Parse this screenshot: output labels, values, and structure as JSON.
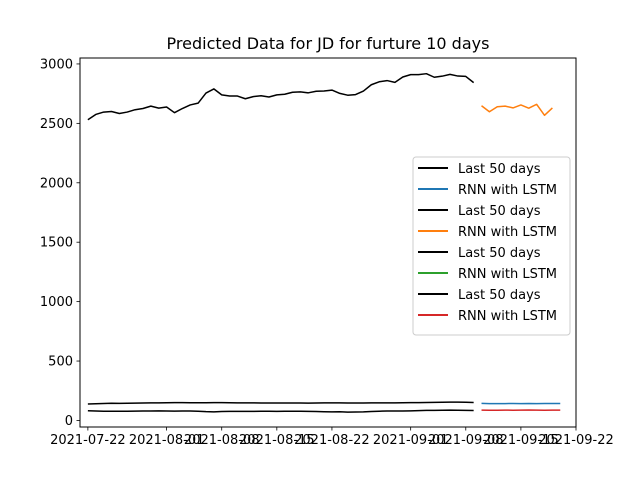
{
  "chart_data": {
    "type": "line",
    "title": "Predicted Data for JD for furture 10 days",
    "xlabel": "",
    "ylabel": "",
    "ylim": [
      -55,
      3050
    ],
    "xlim": [
      "2021-07-21",
      "2021-09-22"
    ],
    "grid": false,
    "legend_position": "center-right",
    "x_ticks": [
      "2021-07-22",
      "2021-08-01",
      "2021-08-08",
      "2021-08-15",
      "2021-08-22",
      "2021-09-01",
      "2021-09-08",
      "2021-09-15",
      "2021-09-22"
    ],
    "x_tick_positions": [
      "2021-07-22",
      "2021-08-01",
      "2021-08-08",
      "2021-08-15",
      "2021-08-22",
      "2021-09-01",
      "2021-09-08",
      "2021-09-15",
      "2021-09-22"
    ],
    "y_ticks": [
      0,
      500,
      1000,
      1500,
      2000,
      2500,
      3000
    ],
    "series": [
      {
        "name": "Last 50 days",
        "color": "#000000",
        "x": [
          "2021-07-22",
          "2021-07-23",
          "2021-07-24",
          "2021-07-25",
          "2021-07-26",
          "2021-07-27",
          "2021-07-28",
          "2021-07-29",
          "2021-07-30",
          "2021-07-31",
          "2021-08-01",
          "2021-08-02",
          "2021-08-03",
          "2021-08-04",
          "2021-08-05",
          "2021-08-06",
          "2021-08-07",
          "2021-08-08",
          "2021-08-09",
          "2021-08-10",
          "2021-08-11",
          "2021-08-12",
          "2021-08-13",
          "2021-08-14",
          "2021-08-15",
          "2021-08-16",
          "2021-08-17",
          "2021-08-18",
          "2021-08-19",
          "2021-08-20",
          "2021-08-21",
          "2021-08-22",
          "2021-08-23",
          "2021-08-24",
          "2021-08-25",
          "2021-08-26",
          "2021-08-27",
          "2021-08-28",
          "2021-08-29",
          "2021-08-30",
          "2021-08-31",
          "2021-09-01",
          "2021-09-02",
          "2021-09-03",
          "2021-09-04",
          "2021-09-05",
          "2021-09-06",
          "2021-09-07",
          "2021-09-08",
          "2021-09-09"
        ],
        "values": [
          138,
          141,
          143,
          145,
          144,
          145,
          146,
          147,
          148,
          148,
          149,
          150,
          150,
          149,
          149,
          149,
          150,
          150,
          149,
          148,
          148,
          148,
          147,
          147,
          147,
          147,
          147,
          147,
          146,
          147,
          148,
          148,
          148,
          147,
          147,
          147,
          148,
          148,
          148,
          148,
          149,
          150,
          150,
          151,
          152,
          153,
          154,
          154,
          153,
          151
        ]
      },
      {
        "name": "RNN with LSTM",
        "color": "#1f77b4",
        "x": [
          "2021-09-10",
          "2021-09-11",
          "2021-09-12",
          "2021-09-13",
          "2021-09-14",
          "2021-09-15",
          "2021-09-16",
          "2021-09-17",
          "2021-09-18",
          "2021-09-19",
          "2021-09-20"
        ],
        "values": [
          144,
          142,
          142,
          142,
          143,
          142,
          143,
          142,
          143,
          143,
          143
        ]
      },
      {
        "name": "Last 50 days",
        "color": "#000000",
        "x": [
          "2021-07-22",
          "2021-07-23",
          "2021-07-24",
          "2021-07-25",
          "2021-07-26",
          "2021-07-27",
          "2021-07-28",
          "2021-07-29",
          "2021-07-30",
          "2021-07-31",
          "2021-08-01",
          "2021-08-02",
          "2021-08-03",
          "2021-08-04",
          "2021-08-05",
          "2021-08-06",
          "2021-08-07",
          "2021-08-08",
          "2021-08-09",
          "2021-08-10",
          "2021-08-11",
          "2021-08-12",
          "2021-08-13",
          "2021-08-14",
          "2021-08-15",
          "2021-08-16",
          "2021-08-17",
          "2021-08-18",
          "2021-08-19",
          "2021-08-20",
          "2021-08-21",
          "2021-08-22",
          "2021-08-23",
          "2021-08-24",
          "2021-08-25",
          "2021-08-26",
          "2021-08-27",
          "2021-08-28",
          "2021-08-29",
          "2021-08-30",
          "2021-08-31",
          "2021-09-01",
          "2021-09-02",
          "2021-09-03",
          "2021-09-04",
          "2021-09-05",
          "2021-09-06",
          "2021-09-07",
          "2021-09-08",
          "2021-09-09"
        ],
        "values": [
          2530,
          2575,
          2595,
          2600,
          2583,
          2595,
          2615,
          2625,
          2645,
          2628,
          2638,
          2590,
          2625,
          2655,
          2670,
          2755,
          2790,
          2740,
          2730,
          2730,
          2707,
          2725,
          2732,
          2722,
          2740,
          2745,
          2762,
          2765,
          2757,
          2770,
          2772,
          2780,
          2752,
          2737,
          2742,
          2772,
          2825,
          2850,
          2860,
          2845,
          2890,
          2910,
          2910,
          2918,
          2888,
          2897,
          2912,
          2898,
          2895,
          2843
        ]
      },
      {
        "name": "RNN with LSTM",
        "color": "#ff7f0e",
        "x": [
          "2021-09-10",
          "2021-09-11",
          "2021-09-12",
          "2021-09-13",
          "2021-09-14",
          "2021-09-15",
          "2021-09-16",
          "2021-09-17",
          "2021-09-18",
          "2021-09-19",
          "2021-09-20"
        ],
        "values": [
          2648,
          2598,
          2640,
          2645,
          2630,
          2655,
          2628,
          2660,
          2568,
          2630,
          null
        ]
      },
      {
        "name": "Last 50 days",
        "color": "#000000",
        "x": [
          "2021-07-22",
          "2021-07-23",
          "2021-07-24",
          "2021-07-25",
          "2021-07-26",
          "2021-07-27",
          "2021-07-28",
          "2021-07-29",
          "2021-07-30",
          "2021-07-31",
          "2021-08-01",
          "2021-08-02",
          "2021-08-03",
          "2021-08-04",
          "2021-08-05",
          "2021-08-06",
          "2021-08-07",
          "2021-08-08",
          "2021-08-09",
          "2021-08-10",
          "2021-08-11",
          "2021-08-12",
          "2021-08-13",
          "2021-08-14",
          "2021-08-15",
          "2021-08-16",
          "2021-08-17",
          "2021-08-18",
          "2021-08-19",
          "2021-08-20",
          "2021-08-21",
          "2021-08-22",
          "2021-08-23",
          "2021-08-24",
          "2021-08-25",
          "2021-08-26",
          "2021-08-27",
          "2021-08-28",
          "2021-08-29",
          "2021-08-30",
          "2021-08-31",
          "2021-09-01",
          "2021-09-02",
          "2021-09-03",
          "2021-09-04",
          "2021-09-05",
          "2021-09-06",
          "2021-09-07",
          "2021-09-08",
          "2021-09-09"
        ],
        "values": [
          82,
          80,
          78,
          78,
          77,
          78,
          79,
          80,
          80,
          81,
          80,
          79,
          80,
          80,
          78,
          74,
          72,
          75,
          76,
          76,
          76,
          76,
          77,
          77,
          76,
          77,
          77,
          77,
          76,
          75,
          73,
          72,
          73,
          70,
          71,
          72,
          75,
          78,
          80,
          80,
          80,
          81,
          83,
          85,
          85,
          86,
          87,
          86,
          85,
          84
        ]
      },
      {
        "name": "RNN with LSTM",
        "color": "#2ca02c",
        "x": [],
        "values": []
      },
      {
        "name": "Last 50 days",
        "color": "#000000",
        "x": [],
        "values": []
      },
      {
        "name": "RNN with LSTM",
        "color": "#d62728",
        "x": [
          "2021-09-10",
          "2021-09-11",
          "2021-09-12",
          "2021-09-13",
          "2021-09-14",
          "2021-09-15",
          "2021-09-16",
          "2021-09-17",
          "2021-09-18",
          "2021-09-19",
          "2021-09-20"
        ],
        "values": [
          87,
          86,
          86,
          87,
          86,
          87,
          88,
          87,
          86,
          87,
          87
        ]
      }
    ]
  }
}
